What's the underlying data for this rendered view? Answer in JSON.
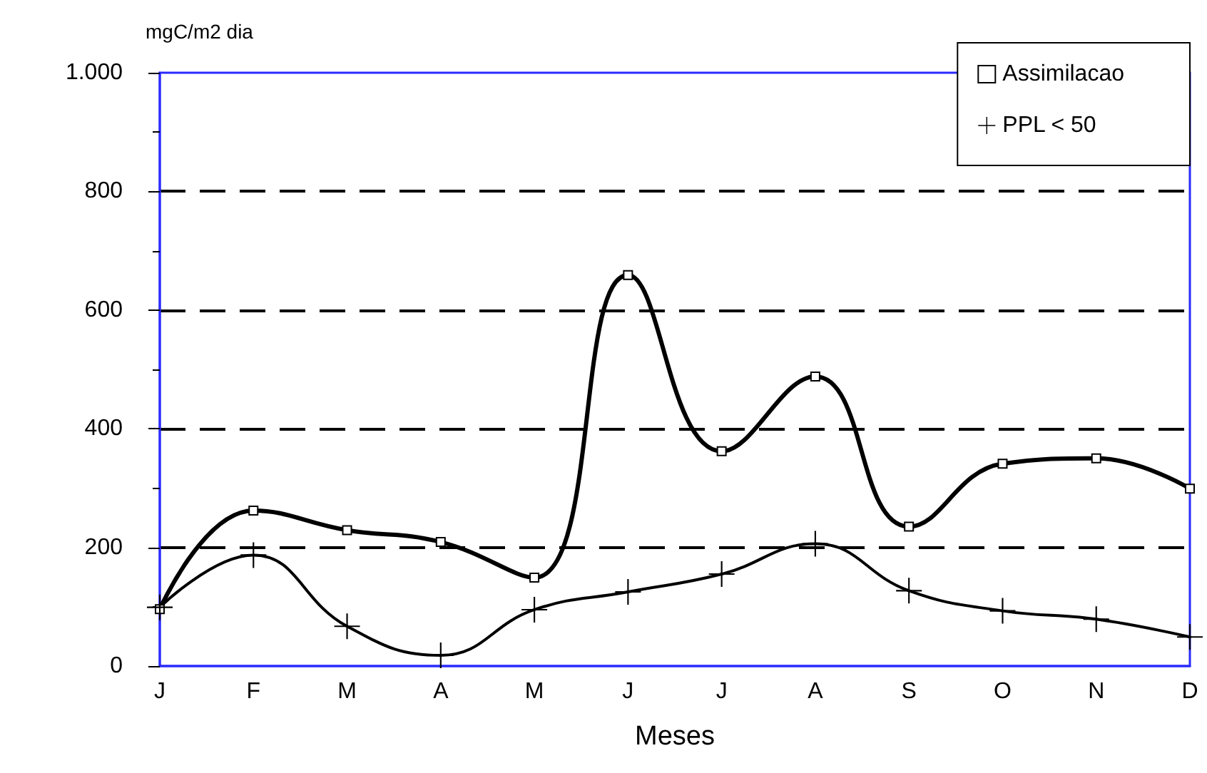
{
  "chart_data": {
    "type": "line",
    "xlabel": "Meses",
    "ylabel": "mgC/m2 dia",
    "categories": [
      "J",
      "F",
      "M",
      "A",
      "M",
      "J",
      "J",
      "A",
      "S",
      "O",
      "N",
      "D"
    ],
    "series": [
      {
        "name": "Assimilacao",
        "color": "#000000",
        "marker": "square",
        "values": [
          96,
          262,
          229,
          209,
          149,
          659,
          362,
          488,
          235,
          341,
          350,
          299
        ]
      },
      {
        "name": "PPL < 50",
        "color": "#000000",
        "marker": "cross",
        "values": [
          99,
          187,
          67,
          18,
          95,
          125,
          155,
          206,
          127,
          93,
          79,
          49
        ]
      }
    ],
    "ylim": [
      0,
      1000
    ],
    "yticks": [
      0,
      {
        "value": 100,
        "label": null
      },
      200,
      {
        "value": 300,
        "label": null
      },
      400,
      {
        "value": 500,
        "label": null
      },
      600,
      {
        "value": 700,
        "label": null
      },
      800,
      {
        "value": 900,
        "label": null
      },
      {
        "value": 1000,
        "label": "1.000"
      }
    ],
    "grid": "y",
    "legend": "top right",
    "line_style": "solid"
  }
}
